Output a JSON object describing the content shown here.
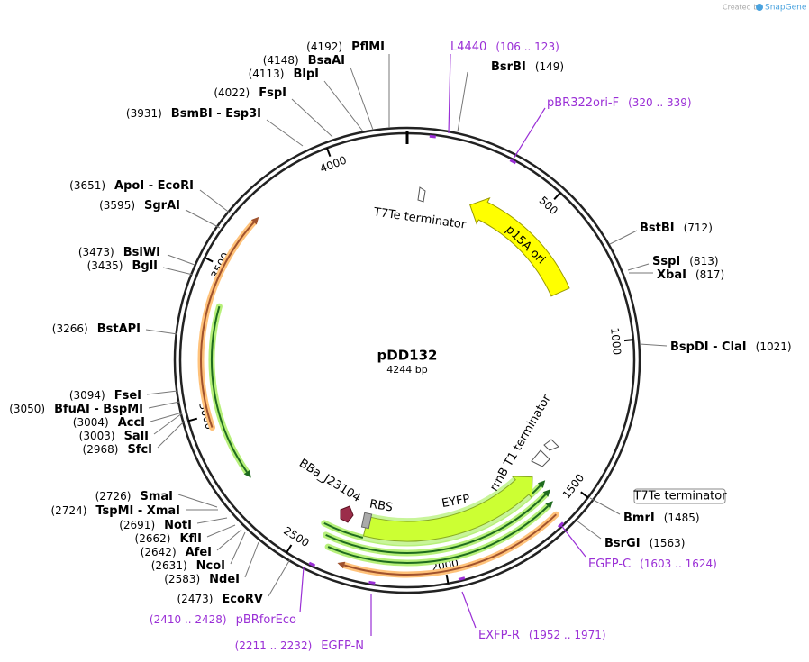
{
  "header": {
    "created_by": "Created by",
    "brand": "SnapGene"
  },
  "map": {
    "name": "pDD132",
    "length": "4244 bp"
  },
  "ticks": [
    "500",
    "1000",
    "1500",
    "2000",
    "2500",
    "3000",
    "3500",
    "4000"
  ],
  "enzymes": [
    {
      "position": "(4192)",
      "name": "PflMI"
    },
    {
      "position": "(4148)",
      "name": "BsaAI"
    },
    {
      "position": "(4113)",
      "name": "BlpI"
    },
    {
      "position": "(4022)",
      "name": "FspI"
    },
    {
      "position": "(3931)",
      "name": "BsmBI - Esp3I"
    },
    {
      "position": "(3651)",
      "name": "ApoI - EcoRI"
    },
    {
      "position": "(3595)",
      "name": "SgrAI"
    },
    {
      "position": "(3473)",
      "name": "BsiWI"
    },
    {
      "position": "(3435)",
      "name": "BglI"
    },
    {
      "position": "(3266)",
      "name": "BstAPI"
    },
    {
      "position": "(3094)",
      "name": "FseI"
    },
    {
      "position": "(3050)",
      "name": "BfuAI - BspMI"
    },
    {
      "position": "(3004)",
      "name": "AccI"
    },
    {
      "position": "(3003)",
      "name": "SalI"
    },
    {
      "position": "(2968)",
      "name": "SfcI"
    },
    {
      "position": "(2726)",
      "name": "SmaI"
    },
    {
      "position": "(2724)",
      "name": "TspMI - XmaI"
    },
    {
      "position": "(2691)",
      "name": "NotI"
    },
    {
      "position": "(2662)",
      "name": "KflI"
    },
    {
      "position": "(2642)",
      "name": "AfeI"
    },
    {
      "position": "(2631)",
      "name": "NcoI"
    },
    {
      "position": "(2583)",
      "name": "NdeI"
    },
    {
      "position": "(2473)",
      "name": "EcoRV"
    },
    {
      "position": "(149)",
      "name": "BsrBI"
    },
    {
      "position": "(712)",
      "name": "BstBI"
    },
    {
      "position": "(813)",
      "name": "SspI"
    },
    {
      "position": "(817)",
      "name": "XbaI"
    },
    {
      "position": "(1021)",
      "name": "BspDI - ClaI"
    },
    {
      "position": "(1485)",
      "name": "BmrI"
    },
    {
      "position": "(1563)",
      "name": "BsrGI"
    }
  ],
  "primers": [
    {
      "name": "L4440",
      "range": "(106 .. 123)"
    },
    {
      "name": "pBR322ori-F",
      "range": "(320 .. 339)"
    },
    {
      "name": "EGFP-C",
      "range": "(1603 .. 1624)"
    },
    {
      "name": "EXFP-R",
      "range": "(1952 .. 1971)"
    },
    {
      "name": "EGFP-N",
      "range": "(2211 .. 2232)"
    },
    {
      "name": "pBRforEco",
      "range": "(2410 .. 2428)"
    }
  ],
  "features": [
    "T7Te terminator",
    "p15A ori",
    "rrnB T1 terminator",
    "EYFP",
    "RBS",
    "BBa_J23104",
    "T7Te terminator"
  ]
}
